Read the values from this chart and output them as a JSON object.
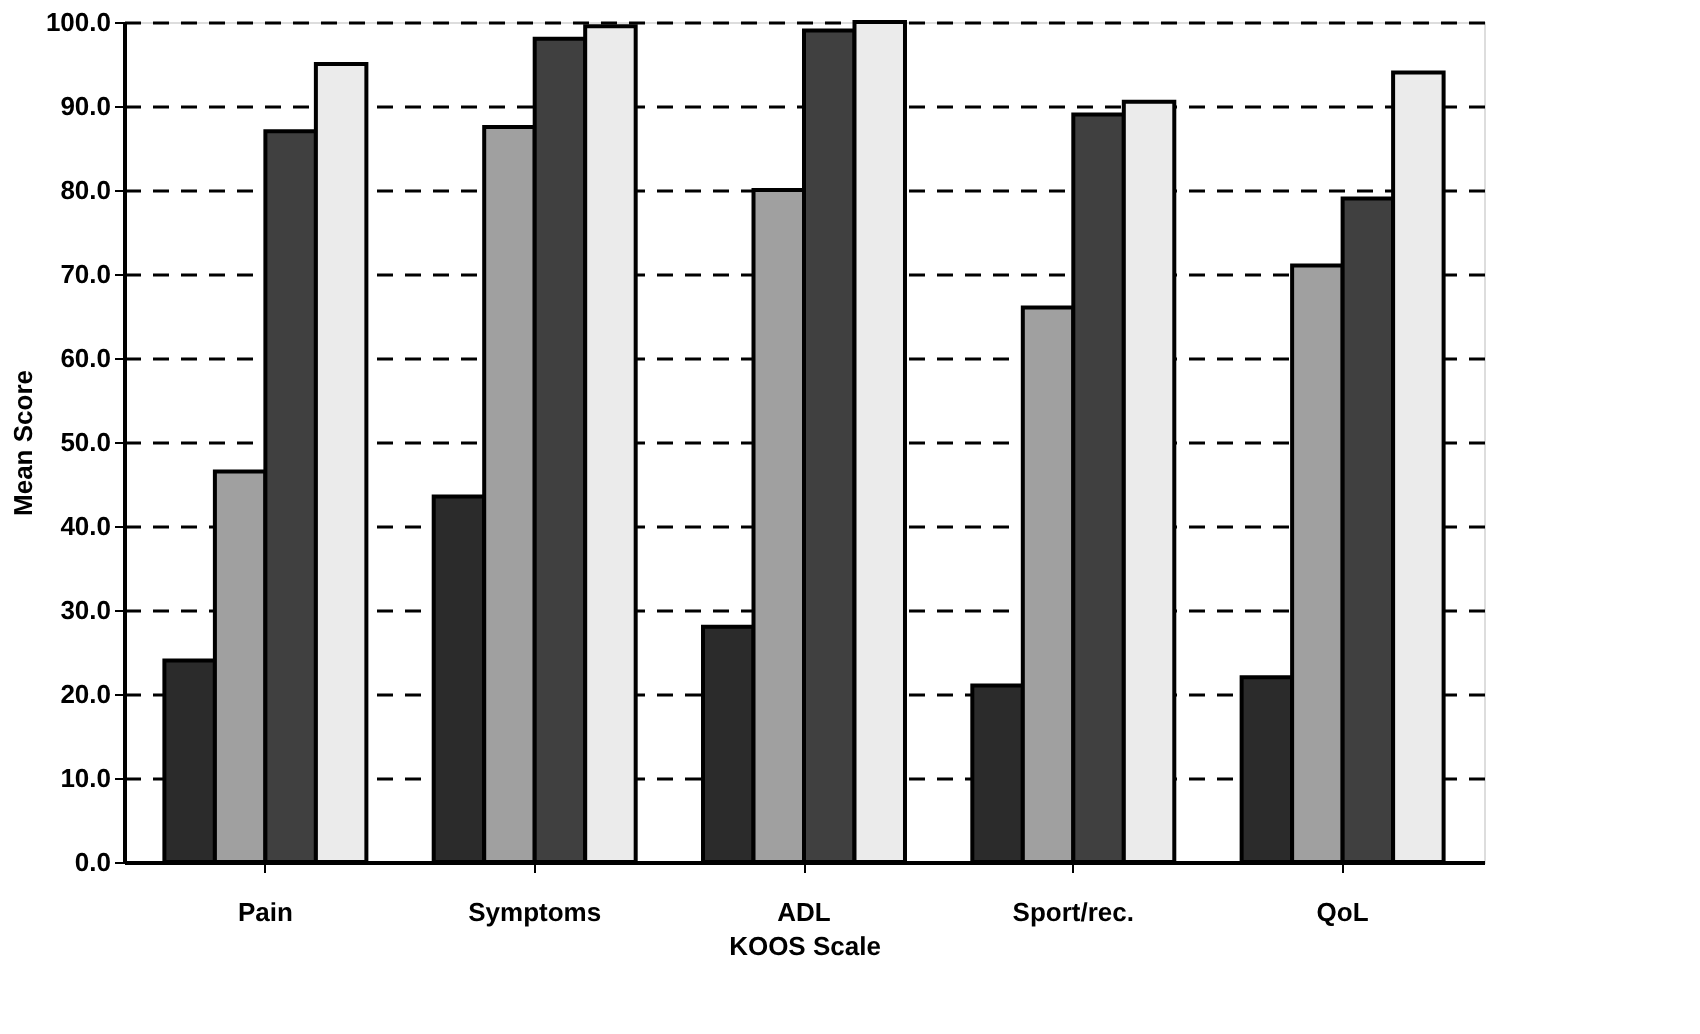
{
  "chart_data": {
    "type": "bar",
    "xlabel": "KOOS Scale",
    "ylabel": "Mean Score",
    "categories": [
      "Pain",
      "Symptoms",
      "ADL",
      "Sport/rec.",
      "QoL"
    ],
    "series": [
      {
        "color": "#2b2b2b",
        "values": [
          24,
          43.5,
          28,
          21,
          22
        ]
      },
      {
        "color": "#a0a0a0",
        "values": [
          46.5,
          87.5,
          80,
          66,
          71
        ]
      },
      {
        "color": "#404040",
        "values": [
          87,
          98,
          99,
          89,
          79
        ]
      },
      {
        "color": "#ebebeb",
        "values": [
          95,
          99.5,
          100,
          90.5,
          94
        ]
      }
    ],
    "ylim": [
      0,
      100
    ],
    "yticks": [
      {
        "value": 0,
        "label": "0.0"
      },
      {
        "value": 10,
        "label": "10.0"
      },
      {
        "value": 20,
        "label": "20.0"
      },
      {
        "value": 30,
        "label": "30.0"
      },
      {
        "value": 40,
        "label": "40.0"
      },
      {
        "value": 50,
        "label": "50.0"
      },
      {
        "value": 60,
        "label": "60.0"
      },
      {
        "value": 70,
        "label": "70.0"
      },
      {
        "value": 80,
        "label": "80.0"
      },
      {
        "value": 90,
        "label": "90.0"
      },
      {
        "value": 100,
        "label": "100.0"
      }
    ],
    "grid": "y",
    "legend": false
  }
}
